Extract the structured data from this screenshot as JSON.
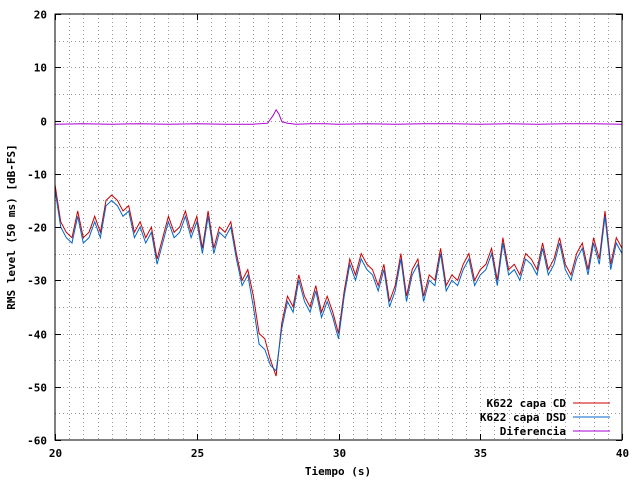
{
  "chart_data": {
    "type": "line",
    "xlabel": "Tiempo (s)",
    "ylabel": "RMS level (50 ms) [dB-FS]",
    "xlim": [
      20,
      40
    ],
    "ylim": [
      -60,
      20
    ],
    "x_ticks": [
      "20",
      "25",
      "30",
      "35",
      "40"
    ],
    "y_ticks": [
      "20",
      "10",
      "0",
      "-10",
      "-20",
      "-30",
      "-40",
      "-50",
      "-60"
    ],
    "x_minor_step": 0.5,
    "y_grid_step": 5,
    "grid": true,
    "legend_position": "bottom-right",
    "series": [
      {
        "name": "K622 capa CD",
        "color": "#cc0000",
        "x": [
          20.0,
          20.2,
          20.4,
          20.6,
          20.8,
          21.0,
          21.2,
          21.4,
          21.6,
          21.8,
          22.0,
          22.2,
          22.4,
          22.6,
          22.8,
          23.0,
          23.2,
          23.4,
          23.6,
          23.8,
          24.0,
          24.2,
          24.4,
          24.6,
          24.8,
          25.0,
          25.2,
          25.4,
          25.6,
          25.8,
          26.0,
          26.2,
          26.4,
          26.6,
          26.8,
          27.0,
          27.2,
          27.4,
          27.6,
          27.8,
          28.0,
          28.2,
          28.4,
          28.6,
          28.8,
          29.0,
          29.2,
          29.4,
          29.6,
          29.8,
          30.0,
          30.2,
          30.4,
          30.6,
          30.8,
          31.0,
          31.2,
          31.4,
          31.6,
          31.8,
          32.0,
          32.2,
          32.4,
          32.6,
          32.8,
          33.0,
          33.2,
          33.4,
          33.6,
          33.8,
          34.0,
          34.2,
          34.4,
          34.6,
          34.8,
          35.0,
          35.2,
          35.4,
          35.6,
          35.8,
          36.0,
          36.2,
          36.4,
          36.6,
          36.8,
          37.0,
          37.2,
          37.4,
          37.6,
          37.8,
          38.0,
          38.2,
          38.4,
          38.6,
          38.8,
          39.0,
          39.2,
          39.4,
          39.6,
          39.8,
          40.0
        ],
        "y": [
          -12,
          -19,
          -21,
          -22,
          -17,
          -22,
          -21,
          -18,
          -21,
          -15,
          -14,
          -15,
          -17,
          -16,
          -21,
          -19,
          -22,
          -20,
          -26,
          -22,
          -18,
          -21,
          -20,
          -17,
          -21,
          -18,
          -24,
          -17,
          -24,
          -20,
          -21,
          -19,
          -25,
          -30,
          -28,
          -33,
          -40,
          -41,
          -45,
          -48,
          -38,
          -33,
          -35,
          -29,
          -33,
          -35,
          -31,
          -36,
          -33,
          -36,
          -40,
          -32,
          -26,
          -29,
          -25,
          -27,
          -28,
          -31,
          -27,
          -34,
          -31,
          -25,
          -33,
          -28,
          -26,
          -33,
          -29,
          -30,
          -24,
          -31,
          -29,
          -30,
          -27,
          -25,
          -30,
          -28,
          -27,
          -24,
          -30,
          -22,
          -28,
          -27,
          -29,
          -25,
          -26,
          -28,
          -23,
          -28,
          -26,
          -22,
          -27,
          -29,
          -25,
          -23,
          -28,
          -22,
          -26,
          -17,
          -27,
          -22,
          -24
        ]
      },
      {
        "name": "K622 capa DSD",
        "color": "#0066cc",
        "x": [
          20.0,
          20.2,
          20.4,
          20.6,
          20.8,
          21.0,
          21.2,
          21.4,
          21.6,
          21.8,
          22.0,
          22.2,
          22.4,
          22.6,
          22.8,
          23.0,
          23.2,
          23.4,
          23.6,
          23.8,
          24.0,
          24.2,
          24.4,
          24.6,
          24.8,
          25.0,
          25.2,
          25.4,
          25.6,
          25.8,
          26.0,
          26.2,
          26.4,
          26.6,
          26.8,
          27.0,
          27.2,
          27.4,
          27.6,
          27.8,
          28.0,
          28.2,
          28.4,
          28.6,
          28.8,
          29.0,
          29.2,
          29.4,
          29.6,
          29.8,
          30.0,
          30.2,
          30.4,
          30.6,
          30.8,
          31.0,
          31.2,
          31.4,
          31.6,
          31.8,
          32.0,
          32.2,
          32.4,
          32.6,
          32.8,
          33.0,
          33.2,
          33.4,
          33.6,
          33.8,
          34.0,
          34.2,
          34.4,
          34.6,
          34.8,
          35.0,
          35.2,
          35.4,
          35.6,
          35.8,
          36.0,
          36.2,
          36.4,
          36.6,
          36.8,
          37.0,
          37.2,
          37.4,
          37.6,
          37.8,
          38.0,
          38.2,
          38.4,
          38.6,
          38.8,
          39.0,
          39.2,
          39.4,
          39.6,
          39.8,
          40.0
        ],
        "y": [
          -13,
          -20,
          -22,
          -23,
          -18,
          -23,
          -22,
          -19,
          -22,
          -16,
          -15,
          -16,
          -18,
          -17,
          -22,
          -20,
          -23,
          -21,
          -27,
          -23,
          -19,
          -22,
          -21,
          -18,
          -22,
          -19,
          -25,
          -18,
          -25,
          -21,
          -22,
          -20,
          -26,
          -31,
          -29,
          -35,
          -42,
          -43,
          -46,
          -47,
          -39,
          -34,
          -36,
          -30,
          -34,
          -36,
          -32,
          -37,
          -34,
          -37,
          -41,
          -33,
          -27,
          -30,
          -26,
          -28,
          -29,
          -32,
          -28,
          -35,
          -32,
          -26,
          -34,
          -29,
          -27,
          -34,
          -30,
          -31,
          -25,
          -32,
          -30,
          -31,
          -28,
          -26,
          -31,
          -29,
          -28,
          -25,
          -31,
          -23,
          -29,
          -28,
          -30,
          -26,
          -27,
          -29,
          -24,
          -29,
          -27,
          -23,
          -28,
          -30,
          -26,
          -24,
          -29,
          -23,
          -27,
          -18,
          -28,
          -23,
          -25
        ]
      },
      {
        "name": "Diferencia",
        "color": "#aa00cc",
        "x": [
          20.0,
          21.0,
          22.0,
          23.0,
          24.0,
          25.0,
          26.0,
          27.0,
          27.5,
          27.7,
          27.8,
          27.9,
          28.0,
          28.2,
          28.5,
          29.0,
          29.5,
          30.0,
          31.0,
          32.0,
          33.0,
          34.0,
          35.0,
          36.0,
          37.0,
          38.0,
          39.0,
          40.0
        ],
        "y": [
          -0.7,
          -0.6,
          -0.7,
          -0.6,
          -0.7,
          -0.6,
          -0.7,
          -0.7,
          -0.5,
          1.0,
          2.0,
          1.2,
          -0.2,
          -0.5,
          -0.7,
          -0.6,
          -0.6,
          -0.7,
          -0.6,
          -0.7,
          -0.6,
          -0.6,
          -0.7,
          -0.6,
          -0.7,
          -0.6,
          -0.6,
          -0.7
        ]
      }
    ]
  }
}
